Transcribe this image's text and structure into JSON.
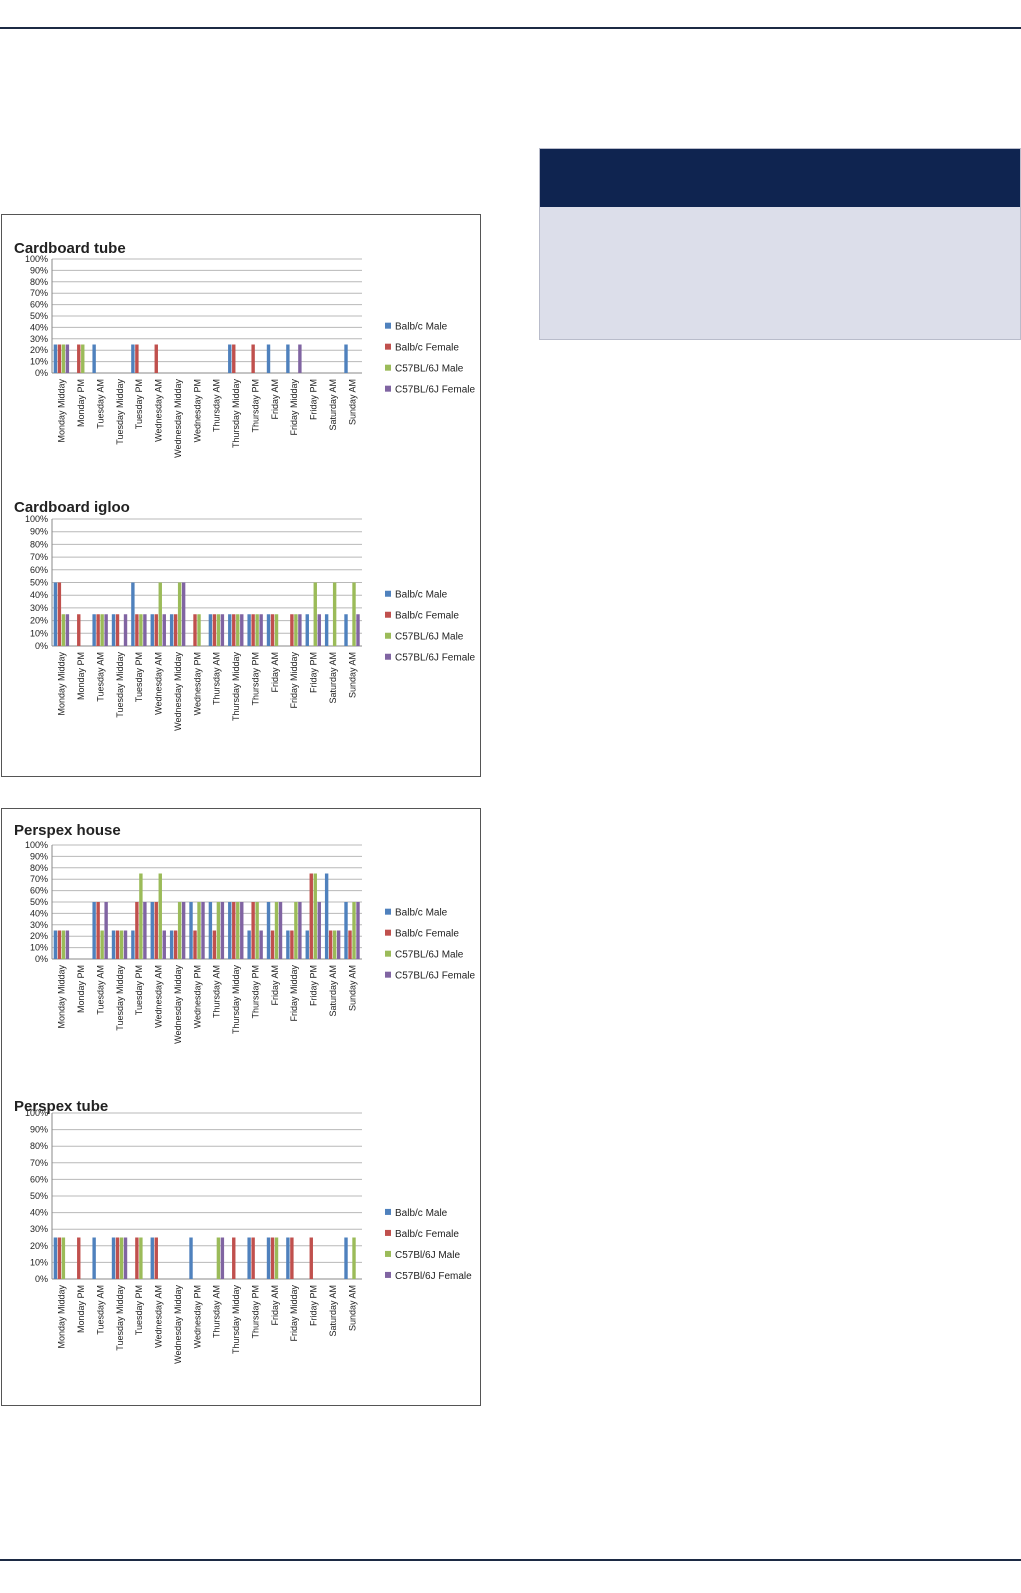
{
  "colors": {
    "rule": "#1c2a44",
    "box_header": "#0f2450",
    "box_body": "#dcdeea"
  },
  "chart_data": [
    {
      "type": "bar",
      "title": "Cardboard tube",
      "ylim": [
        0,
        100
      ],
      "yticks": [
        "0%",
        "10%",
        "20%",
        "30%",
        "40%",
        "50%",
        "60%",
        "70%",
        "80%",
        "90%",
        "100%"
      ],
      "legend_position": "right",
      "grid": true,
      "categories": [
        "Monday Midday",
        "Monday PM",
        "Tuesday AM",
        "Tuesday Midday",
        "Tuesday PM",
        "Wednesday AM",
        "Wednesday Midday",
        "Wednesday PM",
        "Thursday AM",
        "Thursday Midday",
        "Thursday PM",
        "Friday AM",
        "Friday Midday",
        "Friday PM",
        "Saturday AM",
        "Sunday AM"
      ],
      "series": [
        {
          "name": "Balb/c Male",
          "color": "#4f81bd",
          "values": [
            25,
            0,
            25,
            0,
            25,
            0,
            0,
            0,
            0,
            25,
            0,
            25,
            25,
            0,
            0,
            25
          ]
        },
        {
          "name": "Balb/c Female",
          "color": "#c0504d",
          "values": [
            25,
            25,
            0,
            0,
            25,
            25,
            0,
            0,
            0,
            25,
            25,
            0,
            0,
            0,
            0,
            0
          ]
        },
        {
          "name": "C57BL/6J Male",
          "color": "#9bbb59",
          "values": [
            25,
            25,
            0,
            0,
            0,
            0,
            0,
            0,
            0,
            0,
            0,
            0,
            0,
            0,
            0,
            0
          ]
        },
        {
          "name": "C57BL/6J Female",
          "color": "#8064a2",
          "values": [
            25,
            0,
            0,
            0,
            0,
            0,
            0,
            0,
            0,
            0,
            0,
            0,
            25,
            0,
            0,
            0
          ]
        }
      ]
    },
    {
      "type": "bar",
      "title": "Cardboard igloo",
      "ylim": [
        0,
        100
      ],
      "yticks": [
        "0%",
        "10%",
        "20%",
        "30%",
        "40%",
        "50%",
        "60%",
        "70%",
        "80%",
        "90%",
        "100%"
      ],
      "legend_position": "right",
      "grid": true,
      "categories": [
        "Monday Midday",
        "Monday PM",
        "Tuesday AM",
        "Tuesday Midday",
        "Tuesday PM",
        "Wednesday AM",
        "Wednesday Midday",
        "Wednesday PM",
        "Thursday AM",
        "Thursday Midday",
        "Thursday PM",
        "Friday AM",
        "Friday Midday",
        "Friday PM",
        "Saturday AM",
        "Sunday AM"
      ],
      "series": [
        {
          "name": "Balb/c Male",
          "color": "#4f81bd",
          "values": [
            50,
            0,
            25,
            25,
            50,
            25,
            25,
            0,
            25,
            25,
            25,
            25,
            0,
            25,
            25,
            25
          ]
        },
        {
          "name": "Balb/c Female",
          "color": "#c0504d",
          "values": [
            50,
            25,
            25,
            25,
            25,
            25,
            25,
            25,
            25,
            25,
            25,
            25,
            25,
            0,
            0,
            0
          ]
        },
        {
          "name": "C57BL/6J Male",
          "color": "#9bbb59",
          "values": [
            25,
            0,
            25,
            0,
            25,
            50,
            50,
            25,
            25,
            25,
            25,
            25,
            25,
            50,
            50,
            50
          ]
        },
        {
          "name": "C57BL/6J Female",
          "color": "#8064a2",
          "values": [
            25,
            0,
            25,
            25,
            25,
            25,
            50,
            0,
            25,
            25,
            25,
            0,
            25,
            25,
            0,
            25
          ]
        }
      ]
    },
    {
      "type": "bar",
      "title": "Perspex house",
      "ylim": [
        0,
        100
      ],
      "yticks": [
        "0%",
        "10%",
        "20%",
        "30%",
        "40%",
        "50%",
        "60%",
        "70%",
        "80%",
        "90%",
        "100%"
      ],
      "legend_position": "right",
      "grid": true,
      "categories": [
        "Monday Midday",
        "Monday PM",
        "Tuesday AM",
        "Tuesday Midday",
        "Tuesday PM",
        "Wednesday AM",
        "Wednesday Midday",
        "Wednesday PM",
        "Thursday AM",
        "Thursday Midday",
        "Thursday PM",
        "Friday AM",
        "Friday Midday",
        "Friday PM",
        "Saturday AM",
        "Sunday AM"
      ],
      "series": [
        {
          "name": "Balb/c Male",
          "color": "#4f81bd",
          "values": [
            25,
            0,
            50,
            25,
            25,
            50,
            25,
            50,
            50,
            50,
            25,
            50,
            25,
            25,
            75,
            50
          ]
        },
        {
          "name": "Balb/c Female",
          "color": "#c0504d",
          "values": [
            25,
            0,
            50,
            25,
            50,
            50,
            25,
            25,
            25,
            50,
            50,
            25,
            25,
            75,
            25,
            25
          ]
        },
        {
          "name": "C57BL/6J Male",
          "color": "#9bbb59",
          "values": [
            25,
            0,
            25,
            25,
            75,
            75,
            50,
            50,
            50,
            50,
            50,
            50,
            50,
            75,
            25,
            50
          ]
        },
        {
          "name": "C57BL/6J Female",
          "color": "#8064a2",
          "values": [
            25,
            0,
            50,
            25,
            50,
            25,
            50,
            50,
            50,
            50,
            25,
            50,
            50,
            50,
            25,
            50
          ]
        }
      ]
    },
    {
      "type": "bar",
      "title": "Perspex tube",
      "ylim": [
        0,
        100
      ],
      "yticks": [
        "0%",
        "10%",
        "20%",
        "30%",
        "40%",
        "50%",
        "60%",
        "70%",
        "80%",
        "90%",
        "100%"
      ],
      "legend_position": "right",
      "grid": true,
      "categories": [
        "Monday Midday",
        "Monday PM",
        "Tuesday AM",
        "Tuesday Midday",
        "Tuesday PM",
        "Wednesday AM",
        "Wednesday Midday",
        "Wednesday PM",
        "Thursday AM",
        "Thursday Midday",
        "Thursday PM",
        "Friday AM",
        "Friday Midday",
        "Friday PM",
        "Saturday AM",
        "Sunday AM"
      ],
      "series": [
        {
          "name": "Balb/c Male",
          "color": "#4f81bd",
          "values": [
            25,
            0,
            25,
            25,
            0,
            25,
            0,
            25,
            0,
            0,
            25,
            25,
            25,
            0,
            0,
            25
          ]
        },
        {
          "name": "Balb/c Female",
          "color": "#c0504d",
          "values": [
            25,
            25,
            0,
            25,
            25,
            25,
            0,
            0,
            0,
            25,
            25,
            25,
            25,
            25,
            0,
            0
          ]
        },
        {
          "name": "C57Bl/6J Male",
          "color": "#9bbb59",
          "values": [
            25,
            0,
            0,
            25,
            25,
            0,
            0,
            0,
            25,
            0,
            0,
            25,
            0,
            0,
            0,
            25
          ]
        },
        {
          "name": "C57Bl/6J Female",
          "color": "#8064a2",
          "values": [
            0,
            0,
            0,
            25,
            0,
            0,
            0,
            0,
            25,
            0,
            0,
            0,
            0,
            0,
            0,
            0
          ]
        }
      ]
    }
  ]
}
